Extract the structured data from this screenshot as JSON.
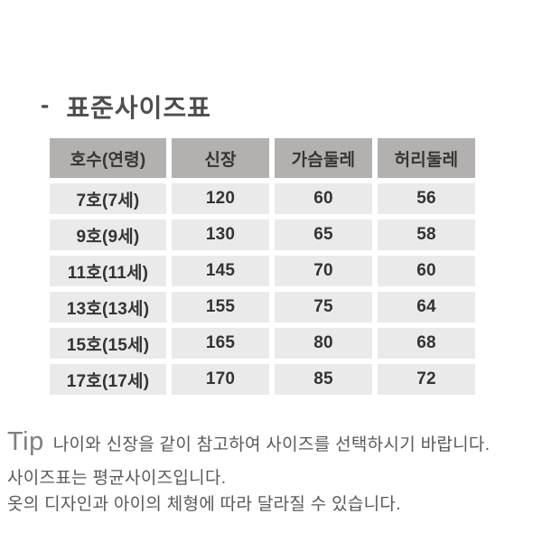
{
  "page": {
    "title_bullet": "-",
    "title_text": "표준사이즈표"
  },
  "size_table": {
    "headers": [
      "호수(연령)",
      "신장",
      "가슴둘레",
      "허리둘레"
    ],
    "rows": [
      [
        "7호(7세)",
        "120",
        "60",
        "56"
      ],
      [
        "9호(9세)",
        "130",
        "65",
        "58"
      ],
      [
        "11호(11세)",
        "145",
        "70",
        "60"
      ],
      [
        "13호(13세)",
        "155",
        "75",
        "64"
      ],
      [
        "15호(15세)",
        "165",
        "80",
        "68"
      ],
      [
        "17호(17세)",
        "170",
        "85",
        "72"
      ]
    ]
  },
  "tip": {
    "label": "Tip",
    "line1": "나이와 신장을 같이 참고하여 사이즈를 선택하시기 바랍니다.",
    "line2": "사이즈표는 평균사이즈입니다.",
    "line3": "옷의 디자인과 아이의 체형에 따라 달라질 수 있습니다."
  },
  "colors": {
    "header_bg": "#b3b0b0",
    "header_text": "#383434",
    "row_bg": "#ebeaea",
    "table_text": "#333333",
    "title_text": "#4d4d4d",
    "tip_text": "#595959",
    "tip_label": "#7f7f7f"
  }
}
